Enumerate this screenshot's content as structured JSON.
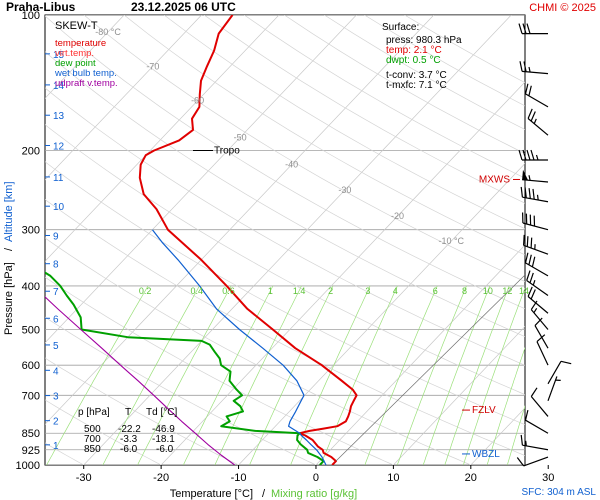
{
  "header": {
    "station": "Praha-Libus",
    "datetime": "23.12.2025 06 UTC",
    "credit": "CHMI © 2025"
  },
  "chart_data": {
    "type": "skew-t",
    "title": "SKEW-T",
    "xlabel": "Temperature [°C]",
    "xlabel_sep": "/",
    "xlabel2": "Mixing ratio [g/kg]",
    "ylabel_left": "Pressure [hPa]",
    "ylabel_sep": "/",
    "ylabel_right": "Altitude [km]",
    "ylim_hpa": [
      1000,
      100
    ],
    "xlim_surface_c": [
      -35,
      27
    ],
    "x_ticks": [
      -30,
      -20,
      -10,
      0,
      10,
      20,
      30
    ],
    "y_ticks": [
      100,
      200,
      300,
      400,
      500,
      600,
      700,
      850,
      925,
      1000
    ],
    "altitude_ticks": [
      {
        "km": 1,
        "p": 902
      },
      {
        "km": 2,
        "p": 797
      },
      {
        "km": 3,
        "p": 701
      },
      {
        "km": 4,
        "p": 616
      },
      {
        "km": 5,
        "p": 541
      },
      {
        "km": 6,
        "p": 472
      },
      {
        "km": 7,
        "p": 411
      },
      {
        "km": 8,
        "p": 357
      },
      {
        "km": 9,
        "p": 309
      },
      {
        "km": 10,
        "p": 266
      },
      {
        "km": 11,
        "p": 229
      },
      {
        "km": 12,
        "p": 195
      },
      {
        "km": 13,
        "p": 167
      },
      {
        "km": 14,
        "p": 143
      },
      {
        "km": 15,
        "p": 122
      }
    ],
    "isotherm_labels": [
      {
        "label": "-80 °C",
        "t": -80,
        "p": 109
      },
      {
        "label": "-70",
        "t": -70,
        "p": 130
      },
      {
        "label": "-60",
        "t": -60,
        "p": 155
      },
      {
        "label": "-50",
        "t": -50,
        "p": 187
      },
      {
        "label": "-40",
        "t": -40,
        "p": 215
      },
      {
        "label": "-30",
        "t": -30,
        "p": 245
      },
      {
        "label": "-20",
        "t": -20,
        "p": 280
      },
      {
        "label": "-10 °C",
        "t": -10,
        "p": 318
      }
    ],
    "mixing_ratio_labels": [
      "0.2",
      "0.4",
      "0.6",
      "1",
      "1.4",
      "2",
      "3",
      "4",
      "6",
      "8",
      "10",
      "12",
      "14",
      "17",
      "20",
      "25"
    ],
    "mixing_ratio_label_p": 410,
    "legend": [
      {
        "name": "temperature",
        "color": "#e00000"
      },
      {
        "name": "virt.temp.",
        "color": "#ff3030"
      },
      {
        "name": "dew point",
        "color": "#00a000"
      },
      {
        "name": "wet bulb temp.",
        "color": "#1060d0"
      },
      {
        "name": "udpraft v.temp.",
        "color": "#a000a0"
      }
    ],
    "surface_box": {
      "heading": "Surface:",
      "press": "press: 980.3 hPa",
      "temp": "temp: 2.1 °C",
      "dwpt": "dwpt: 0.5 °C",
      "tconv": "t-conv: 3.7 °C",
      "tmxfc": "t-mxfc: 7.1 °C",
      "temp_color": "#e00000",
      "dwpt_color": "#00a000"
    },
    "levels_table": {
      "headers": [
        "p [hPa]",
        "T",
        "Td [°C]"
      ],
      "rows": [
        [
          "500",
          "-22.2",
          "-46.9"
        ],
        [
          "700",
          "-3.3",
          "-18.1"
        ],
        [
          "850",
          "-6.0",
          "-6.0"
        ]
      ]
    },
    "markers": {
      "tropo": {
        "label": "Tropo",
        "p": 200
      },
      "mxws": {
        "label": "MXWS",
        "p": 232
      },
      "fzlv": {
        "label": "FZLV",
        "p": 755
      },
      "wbzl": {
        "label": "WBZL",
        "p": 945
      }
    },
    "sfc_note": "SFC: 304 m ASL",
    "series": [
      {
        "name": "temperature",
        "color": "#e00000",
        "points": [
          [
            1000,
            2.1
          ],
          [
            980,
            2.1
          ],
          [
            960,
            1.0
          ],
          [
            940,
            -0.5
          ],
          [
            925,
            -1.0
          ],
          [
            910,
            -2.0
          ],
          [
            900,
            -2.5
          ],
          [
            880,
            -3.5
          ],
          [
            860,
            -5.0
          ],
          [
            850,
            -6.0
          ],
          [
            840,
            -5.0
          ],
          [
            830,
            -3.5
          ],
          [
            820,
            -2.0
          ],
          [
            800,
            -1.5
          ],
          [
            780,
            -1.8
          ],
          [
            760,
            -2.2
          ],
          [
            740,
            -2.7
          ],
          [
            720,
            -3.0
          ],
          [
            700,
            -3.3
          ],
          [
            680,
            -4.5
          ],
          [
            650,
            -7.0
          ],
          [
            600,
            -11.5
          ],
          [
            550,
            -17.0
          ],
          [
            500,
            -22.2
          ],
          [
            450,
            -28.0
          ],
          [
            400,
            -33.5
          ],
          [
            350,
            -40.0
          ],
          [
            300,
            -48.0
          ],
          [
            270,
            -52.0
          ],
          [
            250,
            -55.5
          ],
          [
            230,
            -58.0
          ],
          [
            215,
            -59.5
          ],
          [
            205,
            -60.0
          ],
          [
            200,
            -59.5
          ],
          [
            190,
            -57.5
          ],
          [
            180,
            -57.0
          ],
          [
            170,
            -58.5
          ],
          [
            160,
            -59.0
          ],
          [
            150,
            -60.5
          ],
          [
            140,
            -62.0
          ],
          [
            130,
            -63.0
          ],
          [
            120,
            -64.0
          ],
          [
            110,
            -65.5
          ],
          [
            100,
            -66.0
          ]
        ]
      },
      {
        "name": "dew point",
        "color": "#00a000",
        "points": [
          [
            1000,
            0.5
          ],
          [
            980,
            0.5
          ],
          [
            960,
            -0.8
          ],
          [
            940,
            -2.5
          ],
          [
            925,
            -3.0
          ],
          [
            900,
            -4.5
          ],
          [
            880,
            -5.5
          ],
          [
            860,
            -6.0
          ],
          [
            850,
            -6.0
          ],
          [
            840,
            -12.0
          ],
          [
            820,
            -17.0
          ],
          [
            800,
            -16.5
          ],
          [
            780,
            -17.5
          ],
          [
            760,
            -16.0
          ],
          [
            740,
            -17.0
          ],
          [
            720,
            -18.5
          ],
          [
            700,
            -18.1
          ],
          [
            680,
            -19.5
          ],
          [
            650,
            -21.5
          ],
          [
            620,
            -22.5
          ],
          [
            600,
            -24.5
          ],
          [
            580,
            -25.5
          ],
          [
            560,
            -27.0
          ],
          [
            540,
            -28.5
          ],
          [
            530,
            -30.0
          ],
          [
            520,
            -40.0
          ],
          [
            500,
            -46.9
          ],
          [
            470,
            -48.5
          ],
          [
            440,
            -51.0
          ],
          [
            420,
            -53.0
          ],
          [
            400,
            -55.0
          ],
          [
            380,
            -57.5
          ],
          [
            360,
            -61.0
          ],
          [
            340,
            -64.0
          ],
          [
            320,
            -67.0
          ],
          [
            300,
            -70.0
          ],
          [
            280,
            -72.0
          ],
          [
            260,
            -74.0
          ],
          [
            240,
            -76.0
          ],
          [
            220,
            -75.0
          ],
          [
            200,
            -76.0
          ],
          [
            190,
            -78.5
          ],
          [
            180,
            -80.5
          ],
          [
            170,
            -83.5
          ],
          [
            160,
            -86.0
          ],
          [
            150,
            -88.0
          ],
          [
            140,
            -89.5
          ],
          [
            130,
            -90.5
          ],
          [
            120,
            -92.0
          ],
          [
            110,
            -94.0
          ],
          [
            100,
            -95.0
          ]
        ]
      },
      {
        "name": "wet bulb temp.",
        "color": "#1060d0",
        "points": [
          [
            1000,
            1.3
          ],
          [
            960,
            -0.2
          ],
          [
            925,
            -1.8
          ],
          [
            900,
            -3.2
          ],
          [
            880,
            -4.3
          ],
          [
            860,
            -5.5
          ],
          [
            850,
            -6.0
          ],
          [
            820,
            -8.3
          ],
          [
            800,
            -8.7
          ],
          [
            760,
            -9.2
          ],
          [
            720,
            -9.8
          ],
          [
            700,
            -10.1
          ],
          [
            650,
            -12.8
          ],
          [
            600,
            -16.5
          ],
          [
            550,
            -21.2
          ],
          [
            500,
            -26.5
          ],
          [
            450,
            -32.0
          ],
          [
            400,
            -37.0
          ],
          [
            350,
            -43.0
          ],
          [
            320,
            -47.2
          ],
          [
            300,
            -50.0
          ]
        ]
      },
      {
        "name": "udpraft v.temp.",
        "color": "#a000a0",
        "points": [
          [
            1000,
            -10.5
          ],
          [
            950,
            -13.5
          ],
          [
            900,
            -16.5
          ],
          [
            850,
            -19.5
          ],
          [
            800,
            -22.7
          ],
          [
            750,
            -26.0
          ],
          [
            700,
            -29.5
          ],
          [
            650,
            -33.3
          ],
          [
            600,
            -37.5
          ],
          [
            550,
            -42.0
          ],
          [
            500,
            -47.0
          ],
          [
            450,
            -52.5
          ],
          [
            400,
            -58.5
          ],
          [
            350,
            -65.5
          ],
          [
            300,
            -73.5
          ],
          [
            250,
            -83.0
          ],
          [
            200,
            -94.0
          ],
          [
            150,
            -107.0
          ],
          [
            120,
            -116.0
          ]
        ]
      }
    ],
    "winds": [
      {
        "p": 110,
        "dir": 270,
        "kt": 30
      },
      {
        "p": 135,
        "dir": 275,
        "kt": 25
      },
      {
        "p": 160,
        "dir": 300,
        "kt": 20
      },
      {
        "p": 185,
        "dir": 310,
        "kt": 25
      },
      {
        "p": 210,
        "dir": 270,
        "kt": 45
      },
      {
        "p": 235,
        "dir": 275,
        "kt": 55
      },
      {
        "p": 260,
        "dir": 280,
        "kt": 45
      },
      {
        "p": 300,
        "dir": 285,
        "kt": 40
      },
      {
        "p": 340,
        "dir": 290,
        "kt": 35
      },
      {
        "p": 380,
        "dir": 300,
        "kt": 30
      },
      {
        "p": 420,
        "dir": 305,
        "kt": 25
      },
      {
        "p": 460,
        "dir": 310,
        "kt": 20
      },
      {
        "p": 500,
        "dir": 320,
        "kt": 15
      },
      {
        "p": 550,
        "dir": 330,
        "kt": 10
      },
      {
        "p": 600,
        "dir": 335,
        "kt": 10
      },
      {
        "p": 660,
        "dir": 30,
        "kt": 10
      },
      {
        "p": 720,
        "dir": 20,
        "kt": 5
      },
      {
        "p": 780,
        "dir": 320,
        "kt": 10
      },
      {
        "p": 850,
        "dir": 300,
        "kt": 10
      },
      {
        "p": 925,
        "dir": 280,
        "kt": 15
      },
      {
        "p": 960,
        "dir": 250,
        "kt": 10
      }
    ]
  }
}
